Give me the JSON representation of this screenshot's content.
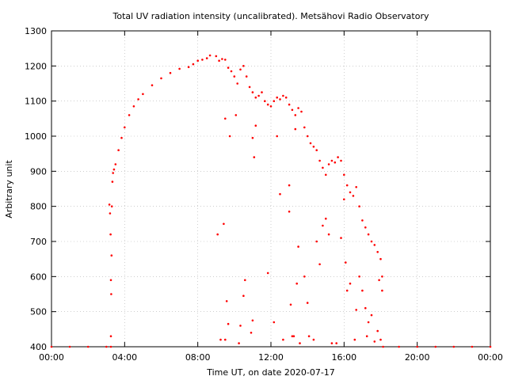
{
  "chart_data": {
    "type": "scatter",
    "title": "Total UV radiation intensity (uncalibrated). Metsähovi Radio Observatory",
    "xlabel": "Time UT, on date 2020-07-17",
    "ylabel": "Arbitrary unit",
    "xlim": [
      "00:00",
      "24:00"
    ],
    "ylim": [
      400,
      1300
    ],
    "x_tick_labels": [
      "00:00",
      "04:00",
      "08:00",
      "12:00",
      "16:00",
      "20:00",
      "00:00"
    ],
    "y_ticks": [
      400,
      500,
      600,
      700,
      800,
      900,
      1000,
      1100,
      1200,
      1300
    ],
    "grid": true,
    "legend": "none",
    "point_color": "#ff0000",
    "series": [
      {
        "points": [
          [
            "00:00",
            400
          ],
          [
            "01:00",
            400
          ],
          [
            "02:00",
            400
          ],
          [
            "03:00",
            400
          ],
          [
            "03:15",
            400
          ],
          [
            "03:15",
            430
          ],
          [
            "03:15",
            590
          ],
          [
            "03:17",
            660
          ],
          [
            "03:18",
            800
          ],
          [
            "03:20",
            870
          ],
          [
            "03:22",
            895
          ],
          [
            "03:25",
            905
          ],
          [
            "03:30",
            920
          ],
          [
            "03:40",
            960
          ],
          [
            "03:50",
            995
          ],
          [
            "04:00",
            1025
          ],
          [
            "04:15",
            1060
          ],
          [
            "04:30",
            1085
          ],
          [
            "04:45",
            1105
          ],
          [
            "05:00",
            1120
          ],
          [
            "05:30",
            1145
          ],
          [
            "06:00",
            1165
          ],
          [
            "06:30",
            1180
          ],
          [
            "07:00",
            1192
          ],
          [
            "07:30",
            1197
          ],
          [
            "07:45",
            1205
          ],
          [
            "08:00",
            1215
          ],
          [
            "08:15",
            1218
          ],
          [
            "08:30",
            1222
          ],
          [
            "08:40",
            1230
          ],
          [
            "09:00",
            1228
          ],
          [
            "09:10",
            1215
          ],
          [
            "09:20",
            1220
          ],
          [
            "09:30",
            1218
          ],
          [
            "09:40",
            1195
          ],
          [
            "09:50",
            1185
          ],
          [
            "10:00",
            1170
          ],
          [
            "10:10",
            1150
          ],
          [
            "10:20",
            1190
          ],
          [
            "10:30",
            1200
          ],
          [
            "10:40",
            1170
          ],
          [
            "10:50",
            1140
          ],
          [
            "11:00",
            1125
          ],
          [
            "11:10",
            1110
          ],
          [
            "11:20",
            1115
          ],
          [
            "11:30",
            1125
          ],
          [
            "11:40",
            1100
          ],
          [
            "11:50",
            1090
          ],
          [
            "12:00",
            1085
          ],
          [
            "12:10",
            1100
          ],
          [
            "12:20",
            1110
          ],
          [
            "12:30",
            1105
          ],
          [
            "12:40",
            1115
          ],
          [
            "12:50",
            1110
          ],
          [
            "13:00",
            1090
          ],
          [
            "13:10",
            1075
          ],
          [
            "13:20",
            1060
          ],
          [
            "13:30",
            1080
          ],
          [
            "13:40",
            1070
          ],
          [
            "13:50",
            1025
          ],
          [
            "14:00",
            1000
          ],
          [
            "14:10",
            980
          ],
          [
            "14:20",
            970
          ],
          [
            "14:30",
            960
          ],
          [
            "14:40",
            930
          ],
          [
            "14:50",
            910
          ],
          [
            "15:00",
            890
          ],
          [
            "15:10",
            920
          ],
          [
            "15:20",
            930
          ],
          [
            "15:30",
            925
          ],
          [
            "15:40",
            940
          ],
          [
            "15:50",
            930
          ],
          [
            "16:00",
            890
          ],
          [
            "16:10",
            860
          ],
          [
            "16:20",
            840
          ],
          [
            "16:30",
            830
          ],
          [
            "16:40",
            855
          ],
          [
            "16:50",
            800
          ],
          [
            "17:00",
            760
          ],
          [
            "17:10",
            740
          ],
          [
            "17:20",
            720
          ],
          [
            "17:30",
            700
          ],
          [
            "17:40",
            690
          ],
          [
            "17:50",
            670
          ],
          [
            "18:00",
            650
          ],
          [
            "18:05",
            600
          ],
          [
            "18:08",
            400
          ],
          [
            "19:00",
            400
          ],
          [
            "20:00",
            400
          ],
          [
            "21:00",
            400
          ],
          [
            "22:00",
            400
          ],
          [
            "23:00",
            400
          ],
          [
            "24:00",
            400
          ],
          [
            "09:05",
            720
          ],
          [
            "09:30",
            1050
          ],
          [
            "09:45",
            1000
          ],
          [
            "10:05",
            1060
          ],
          [
            "11:00",
            995
          ],
          [
            "11:05",
            940
          ],
          [
            "11:10",
            1030
          ],
          [
            "11:50",
            610
          ],
          [
            "12:20",
            1000
          ],
          [
            "12:30",
            835
          ],
          [
            "13:00",
            860
          ],
          [
            "13:00",
            785
          ],
          [
            "13:20",
            1020
          ],
          [
            "13:25",
            580
          ],
          [
            "13:30",
            685
          ],
          [
            "13:50",
            600
          ],
          [
            "14:00",
            525
          ],
          [
            "14:30",
            700
          ],
          [
            "14:40",
            635
          ],
          [
            "14:50",
            745
          ],
          [
            "15:00",
            765
          ],
          [
            "15:10",
            720
          ],
          [
            "15:50",
            710
          ],
          [
            "16:00",
            820
          ],
          [
            "16:05",
            640
          ],
          [
            "16:10",
            560
          ],
          [
            "16:20",
            580
          ],
          [
            "16:40",
            505
          ],
          [
            "16:50",
            600
          ],
          [
            "17:00",
            560
          ],
          [
            "17:10",
            510
          ],
          [
            "17:20",
            470
          ],
          [
            "17:30",
            490
          ],
          [
            "17:50",
            445
          ],
          [
            "17:55",
            590
          ],
          [
            "18:05",
            560
          ],
          [
            "09:15",
            420
          ],
          [
            "09:30",
            420
          ],
          [
            "09:35",
            530
          ],
          [
            "10:15",
            410
          ],
          [
            "10:30",
            545
          ],
          [
            "10:35",
            590
          ],
          [
            "10:55",
            440
          ],
          [
            "12:40",
            420
          ],
          [
            "13:05",
            520
          ],
          [
            "13:15",
            430
          ],
          [
            "13:35",
            410
          ],
          [
            "14:05",
            430
          ],
          [
            "14:20",
            420
          ],
          [
            "15:20",
            410
          ],
          [
            "15:35",
            410
          ],
          [
            "16:35",
            420
          ],
          [
            "17:15",
            430
          ],
          [
            "17:40",
            415
          ],
          [
            "18:00",
            420
          ],
          [
            "03:10",
            805
          ],
          [
            "03:12",
            780
          ],
          [
            "03:14",
            720
          ],
          [
            "03:16",
            550
          ],
          [
            "09:25",
            750
          ],
          [
            "09:40",
            465
          ],
          [
            "10:20",
            460
          ],
          [
            "11:00",
            475
          ],
          [
            "12:10",
            470
          ],
          [
            "13:10",
            430
          ]
        ]
      }
    ]
  }
}
